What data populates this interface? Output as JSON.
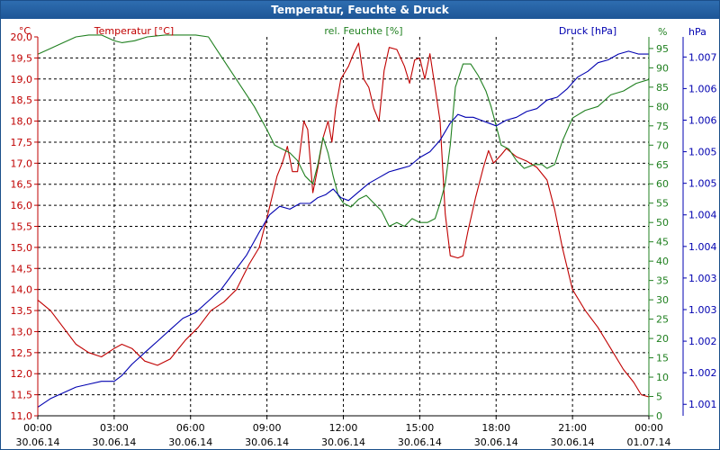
{
  "window": {
    "title": "Temperatur, Feuchte & Druck"
  },
  "colors": {
    "temperature": "#c00000",
    "humidity": "#208020",
    "pressure": "#0000b0",
    "grid": "#000000"
  },
  "chart_data": {
    "type": "line",
    "title": "Temperatur, Feuchte & Druck",
    "grid": true,
    "x_ticks": [
      {
        "time": "00:00",
        "date": "30.06.14"
      },
      {
        "time": "03:00",
        "date": "30.06.14"
      },
      {
        "time": "06:00",
        "date": "30.06.14"
      },
      {
        "time": "09:00",
        "date": "30.06.14"
      },
      {
        "time": "12:00",
        "date": "30.06.14"
      },
      {
        "time": "15:00",
        "date": "30.06.14"
      },
      {
        "time": "18:00",
        "date": "30.06.14"
      },
      {
        "time": "21:00",
        "date": "30.06.14"
      },
      {
        "time": "00:00",
        "date": "01.07.14"
      }
    ],
    "x_range_hours": [
      0,
      24
    ],
    "axes": {
      "temperature": {
        "label": "Temperatur [°C]",
        "unit": "°C",
        "range": [
          11.0,
          20.0
        ],
        "ticks": [
          "11,0",
          "11,5",
          "12,0",
          "12,5",
          "13,0",
          "13,5",
          "14,0",
          "14,5",
          "15,0",
          "15,5",
          "16,0",
          "16,5",
          "17,0",
          "17,5",
          "18,0",
          "18,5",
          "19,0",
          "19,5",
          "20,0"
        ]
      },
      "humidity": {
        "label": "rel. Feuchte [%]",
        "unit": "%",
        "range": [
          0,
          98
        ],
        "ticks": [
          "0",
          "5",
          "10",
          "15",
          "20",
          "25",
          "30",
          "35",
          "40",
          "45",
          "50",
          "55",
          "60",
          "65",
          "70",
          "75",
          "80",
          "85",
          "90",
          "95"
        ]
      },
      "pressure": {
        "label": "Druck [hPa]",
        "unit": "hPa",
        "range": [
          1000.8,
          1007.4
        ],
        "ticks": [
          "1.001",
          "1.002",
          "1.002",
          "1.003",
          "1.003",
          "1.004",
          "1.004",
          "1.005",
          "1.005",
          "1.006",
          "1.006",
          "1.007",
          "1.007"
        ],
        "tick_values": [
          1001.0,
          1001.55,
          1002.1,
          1002.65,
          1003.2,
          1003.75,
          1004.3,
          1004.85,
          1005.4,
          1005.95,
          1006.5,
          1007.05,
          1007.6
        ]
      }
    },
    "series": [
      {
        "name": "Temperatur [°C]",
        "axis": "temperature",
        "points": [
          [
            0,
            13.75
          ],
          [
            0.5,
            13.5
          ],
          [
            1,
            13.1
          ],
          [
            1.5,
            12.7
          ],
          [
            2,
            12.5
          ],
          [
            2.5,
            12.4
          ],
          [
            3,
            12.6
          ],
          [
            3.3,
            12.7
          ],
          [
            3.7,
            12.6
          ],
          [
            4.2,
            12.3
          ],
          [
            4.7,
            12.2
          ],
          [
            5.2,
            12.35
          ],
          [
            5.8,
            12.8
          ],
          [
            6.3,
            13.1
          ],
          [
            6.8,
            13.5
          ],
          [
            7.3,
            13.7
          ],
          [
            7.8,
            14.0
          ],
          [
            8.3,
            14.6
          ],
          [
            8.7,
            15.0
          ],
          [
            9.0,
            15.7
          ],
          [
            9.2,
            16.2
          ],
          [
            9.4,
            16.7
          ],
          [
            9.6,
            17.0
          ],
          [
            9.8,
            17.4
          ],
          [
            10.0,
            16.8
          ],
          [
            10.2,
            16.8
          ],
          [
            10.45,
            18.0
          ],
          [
            10.6,
            17.8
          ],
          [
            10.8,
            16.3
          ],
          [
            11.0,
            16.9
          ],
          [
            11.2,
            17.6
          ],
          [
            11.4,
            18.0
          ],
          [
            11.55,
            17.5
          ],
          [
            11.7,
            18.3
          ],
          [
            11.9,
            19.0
          ],
          [
            12.2,
            19.3
          ],
          [
            12.4,
            19.6
          ],
          [
            12.6,
            19.85
          ],
          [
            12.8,
            19.0
          ],
          [
            13.0,
            18.8
          ],
          [
            13.2,
            18.3
          ],
          [
            13.4,
            18.0
          ],
          [
            13.6,
            19.2
          ],
          [
            13.8,
            19.75
          ],
          [
            14.1,
            19.7
          ],
          [
            14.4,
            19.3
          ],
          [
            14.6,
            18.9
          ],
          [
            14.8,
            19.45
          ],
          [
            15.0,
            19.5
          ],
          [
            15.2,
            19.0
          ],
          [
            15.4,
            19.6
          ],
          [
            15.6,
            18.8
          ],
          [
            15.8,
            18.0
          ],
          [
            16.0,
            15.8
          ],
          [
            16.2,
            14.8
          ],
          [
            16.5,
            14.75
          ],
          [
            16.7,
            14.8
          ],
          [
            16.9,
            15.4
          ],
          [
            17.2,
            16.2
          ],
          [
            17.5,
            16.9
          ],
          [
            17.7,
            17.3
          ],
          [
            17.9,
            17.0
          ],
          [
            18.2,
            17.2
          ],
          [
            18.4,
            17.35
          ],
          [
            18.8,
            17.15
          ],
          [
            19.2,
            17.05
          ],
          [
            19.6,
            16.9
          ],
          [
            20.0,
            16.6
          ],
          [
            20.3,
            15.9
          ],
          [
            20.6,
            15.0
          ],
          [
            21.0,
            14.0
          ],
          [
            21.5,
            13.5
          ],
          [
            22.0,
            13.1
          ],
          [
            22.5,
            12.6
          ],
          [
            23.0,
            12.1
          ],
          [
            23.4,
            11.8
          ],
          [
            23.7,
            11.5
          ],
          [
            24.0,
            11.45
          ]
        ]
      },
      {
        "name": "rel. Feuchte [%]",
        "axis": "humidity",
        "points": [
          [
            0,
            93.5
          ],
          [
            0.5,
            95
          ],
          [
            1,
            96.5
          ],
          [
            1.5,
            98
          ],
          [
            2,
            98.5
          ],
          [
            2.5,
            98.5
          ],
          [
            3,
            97
          ],
          [
            3.3,
            96.5
          ],
          [
            3.8,
            97
          ],
          [
            4.3,
            98
          ],
          [
            5,
            98.5
          ],
          [
            5.5,
            98.5
          ],
          [
            6.2,
            98.5
          ],
          [
            6.7,
            98
          ],
          [
            7.0,
            95
          ],
          [
            7.5,
            90
          ],
          [
            8.0,
            85
          ],
          [
            8.5,
            80
          ],
          [
            9.0,
            74
          ],
          [
            9.3,
            70
          ],
          [
            9.6,
            69
          ],
          [
            9.9,
            68
          ],
          [
            10.2,
            66
          ],
          [
            10.5,
            62
          ],
          [
            10.8,
            60
          ],
          [
            11.0,
            65
          ],
          [
            11.2,
            72
          ],
          [
            11.4,
            68
          ],
          [
            11.6,
            62
          ],
          [
            11.8,
            57
          ],
          [
            12.0,
            55
          ],
          [
            12.3,
            54
          ],
          [
            12.6,
            56
          ],
          [
            12.9,
            57
          ],
          [
            13.2,
            55
          ],
          [
            13.5,
            53
          ],
          [
            13.8,
            49
          ],
          [
            14.1,
            50
          ],
          [
            14.4,
            49
          ],
          [
            14.7,
            51
          ],
          [
            15.0,
            50
          ],
          [
            15.3,
            50
          ],
          [
            15.6,
            51
          ],
          [
            15.8,
            55
          ],
          [
            16.0,
            60
          ],
          [
            16.2,
            70
          ],
          [
            16.4,
            85
          ],
          [
            16.7,
            91
          ],
          [
            17.0,
            91
          ],
          [
            17.3,
            88
          ],
          [
            17.6,
            84
          ],
          [
            17.8,
            80
          ],
          [
            18.0,
            75
          ],
          [
            18.2,
            70
          ],
          [
            18.5,
            69
          ],
          [
            18.8,
            66
          ],
          [
            19.1,
            64
          ],
          [
            19.5,
            65
          ],
          [
            19.8,
            65
          ],
          [
            20.0,
            64
          ],
          [
            20.3,
            65
          ],
          [
            20.6,
            71
          ],
          [
            21.0,
            77
          ],
          [
            21.5,
            79
          ],
          [
            22.0,
            80
          ],
          [
            22.5,
            83
          ],
          [
            23.0,
            84
          ],
          [
            23.5,
            86
          ],
          [
            24.0,
            87
          ]
        ]
      },
      {
        "name": "Druck [hPa]",
        "axis": "pressure",
        "points": [
          [
            0,
            1000.95
          ],
          [
            0.5,
            1001.1
          ],
          [
            1,
            1001.2
          ],
          [
            1.5,
            1001.3
          ],
          [
            2,
            1001.35
          ],
          [
            2.5,
            1001.4
          ],
          [
            3,
            1001.4
          ],
          [
            3.3,
            1001.5
          ],
          [
            3.7,
            1001.7
          ],
          [
            4.2,
            1001.9
          ],
          [
            4.7,
            1002.1
          ],
          [
            5.2,
            1002.3
          ],
          [
            5.7,
            1002.5
          ],
          [
            6.2,
            1002.6
          ],
          [
            6.7,
            1002.8
          ],
          [
            7.2,
            1003.0
          ],
          [
            7.7,
            1003.3
          ],
          [
            8.2,
            1003.6
          ],
          [
            8.7,
            1004.0
          ],
          [
            9.1,
            1004.3
          ],
          [
            9.5,
            1004.45
          ],
          [
            9.9,
            1004.4
          ],
          [
            10.3,
            1004.5
          ],
          [
            10.7,
            1004.5
          ],
          [
            11.0,
            1004.6
          ],
          [
            11.3,
            1004.65
          ],
          [
            11.6,
            1004.75
          ],
          [
            11.9,
            1004.6
          ],
          [
            12.2,
            1004.55
          ],
          [
            12.6,
            1004.7
          ],
          [
            13.0,
            1004.85
          ],
          [
            13.4,
            1004.95
          ],
          [
            13.8,
            1005.05
          ],
          [
            14.2,
            1005.1
          ],
          [
            14.6,
            1005.15
          ],
          [
            15.0,
            1005.3
          ],
          [
            15.4,
            1005.4
          ],
          [
            15.8,
            1005.6
          ],
          [
            16.2,
            1005.9
          ],
          [
            16.5,
            1006.05
          ],
          [
            16.8,
            1006.0
          ],
          [
            17.1,
            1006.0
          ],
          [
            17.4,
            1005.95
          ],
          [
            17.7,
            1005.9
          ],
          [
            18.0,
            1005.85
          ],
          [
            18.4,
            1005.95
          ],
          [
            18.8,
            1006.0
          ],
          [
            19.2,
            1006.1
          ],
          [
            19.6,
            1006.15
          ],
          [
            20.0,
            1006.3
          ],
          [
            20.4,
            1006.35
          ],
          [
            20.8,
            1006.5
          ],
          [
            21.2,
            1006.7
          ],
          [
            21.6,
            1006.8
          ],
          [
            22.0,
            1006.95
          ],
          [
            22.4,
            1007.0
          ],
          [
            22.8,
            1007.1
          ],
          [
            23.2,
            1007.15
          ],
          [
            23.6,
            1007.1
          ],
          [
            24.0,
            1007.1
          ]
        ]
      }
    ]
  }
}
